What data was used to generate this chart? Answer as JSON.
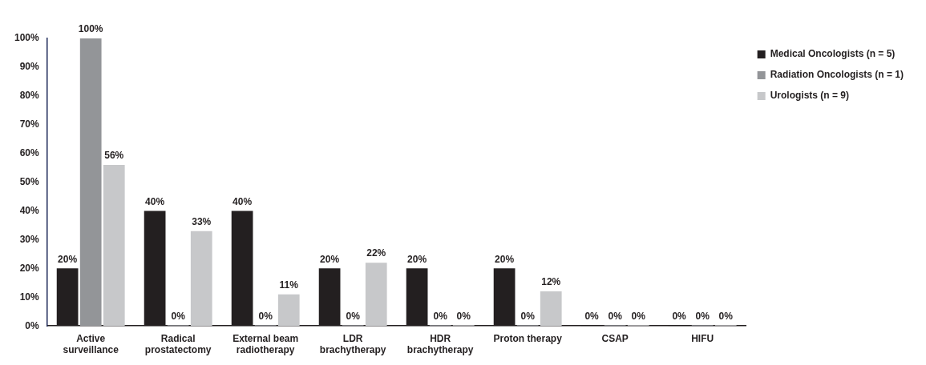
{
  "chart_data": {
    "type": "bar",
    "categories": [
      "Active surveillance",
      "Radical prostatectomy",
      "External beam radiotherapy",
      "LDR brachytherapy",
      "HDR brachytherapy",
      "Proton therapy",
      "CSAP",
      "HIFU"
    ],
    "series": [
      {
        "name": "Medical Oncologists (n = 5)",
        "color": "#231f20",
        "values": [
          20,
          40,
          40,
          20,
          20,
          20,
          0,
          0
        ],
        "value_labels": [
          "20%",
          "40%",
          "40%",
          "20%",
          "20%",
          "20%",
          "0%",
          "0%"
        ]
      },
      {
        "name": "Radiation Oncologists (n = 1)",
        "color": "#939598",
        "values": [
          100,
          0,
          0,
          0,
          0,
          0,
          0,
          0
        ],
        "value_labels": [
          "100%",
          "0%",
          "0%",
          "0%",
          "0%",
          "0%",
          "0%",
          "0%"
        ]
      },
      {
        "name": "Urologists (n = 9)",
        "color": "#c7c8ca",
        "values": [
          56,
          33,
          11,
          22,
          0,
          12,
          0,
          0
        ],
        "value_labels": [
          "56%",
          "33%",
          "11%",
          "22%",
          "0%",
          "12%",
          "0%",
          "0%"
        ]
      }
    ],
    "ylim": [
      0,
      100
    ],
    "yticks": [
      {
        "value": 0,
        "label": "0%"
      },
      {
        "value": 10,
        "label": "10%"
      },
      {
        "value": 20,
        "label": "20%"
      },
      {
        "value": 30,
        "label": "30%"
      },
      {
        "value": 40,
        "label": "40%"
      },
      {
        "value": 50,
        "label": "50%"
      },
      {
        "value": 60,
        "label": "60%"
      },
      {
        "value": 70,
        "label": "70%"
      },
      {
        "value": 80,
        "label": "80%"
      },
      {
        "value": 90,
        "label": "90%"
      },
      {
        "value": 100,
        "label": "100%"
      }
    ],
    "grid": false,
    "legend": "top right"
  }
}
